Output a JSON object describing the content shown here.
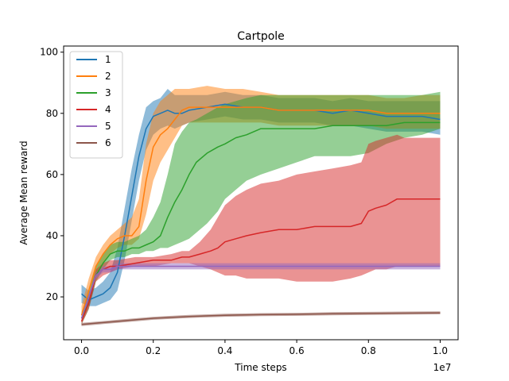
{
  "chart_data": {
    "type": "line",
    "title": "Cartpole",
    "xlabel": "Time steps",
    "ylabel": "Average Mean reward",
    "x_multiplier_label": "1e7",
    "xlim": [
      -0.05,
      1.05
    ],
    "ylim": [
      6,
      102
    ],
    "xticks": [
      0.0,
      0.2,
      0.4,
      0.6,
      0.8,
      1.0
    ],
    "xtick_labels": [
      "0.0",
      "0.2",
      "0.4",
      "0.6",
      "0.8",
      "1.0"
    ],
    "yticks": [
      20,
      40,
      60,
      80,
      100
    ],
    "ytick_labels": [
      "20",
      "40",
      "60",
      "80",
      "100"
    ],
    "legend_position": "top-left",
    "series": [
      {
        "name": "1",
        "color": "#1f77b4",
        "points": [
          [
            0.0,
            21
          ],
          [
            0.02,
            19
          ],
          [
            0.04,
            20
          ],
          [
            0.06,
            21
          ],
          [
            0.08,
            23
          ],
          [
            0.1,
            28
          ],
          [
            0.12,
            40
          ],
          [
            0.14,
            53
          ],
          [
            0.16,
            66
          ],
          [
            0.18,
            75
          ],
          [
            0.2,
            79
          ],
          [
            0.22,
            80
          ],
          [
            0.24,
            81
          ],
          [
            0.26,
            80
          ],
          [
            0.28,
            80
          ],
          [
            0.3,
            81
          ],
          [
            0.35,
            82
          ],
          [
            0.4,
            83
          ],
          [
            0.45,
            82
          ],
          [
            0.5,
            82
          ],
          [
            0.55,
            81
          ],
          [
            0.6,
            81
          ],
          [
            0.65,
            81
          ],
          [
            0.7,
            80
          ],
          [
            0.75,
            81
          ],
          [
            0.8,
            80
          ],
          [
            0.85,
            79
          ],
          [
            0.9,
            79
          ],
          [
            0.95,
            79
          ],
          [
            1.0,
            78
          ]
        ],
        "band_lower": [
          18,
          17,
          17,
          18,
          19,
          22,
          32,
          45,
          58,
          68,
          73,
          75,
          76,
          75,
          76,
          77,
          78,
          79,
          78,
          78,
          77,
          77,
          77,
          76,
          76,
          75,
          74,
          74,
          74,
          73
        ],
        "band_upper": [
          24,
          22,
          23,
          25,
          28,
          36,
          49,
          62,
          73,
          82,
          84,
          85,
          88,
          86,
          86,
          86,
          86,
          87,
          86,
          86,
          85,
          85,
          85,
          84,
          85,
          84,
          84,
          84,
          84,
          84
        ]
      },
      {
        "name": "2",
        "color": "#ff7f0e",
        "points": [
          [
            0.0,
            14
          ],
          [
            0.02,
            22
          ],
          [
            0.04,
            30
          ],
          [
            0.06,
            34
          ],
          [
            0.08,
            37
          ],
          [
            0.1,
            39
          ],
          [
            0.12,
            40
          ],
          [
            0.14,
            40
          ],
          [
            0.16,
            43
          ],
          [
            0.18,
            58
          ],
          [
            0.2,
            69
          ],
          [
            0.22,
            73
          ],
          [
            0.24,
            75
          ],
          [
            0.26,
            78
          ],
          [
            0.28,
            81
          ],
          [
            0.3,
            82
          ],
          [
            0.35,
            82
          ],
          [
            0.4,
            82
          ],
          [
            0.45,
            82
          ],
          [
            0.5,
            82
          ],
          [
            0.55,
            81
          ],
          [
            0.6,
            81
          ],
          [
            0.65,
            81
          ],
          [
            0.7,
            81
          ],
          [
            0.75,
            81
          ],
          [
            0.8,
            81
          ],
          [
            0.85,
            80
          ],
          [
            0.9,
            80
          ],
          [
            0.95,
            80
          ],
          [
            1.0,
            80
          ]
        ],
        "band_lower": [
          12,
          19,
          27,
          31,
          34,
          36,
          37,
          37,
          39,
          47,
          58,
          64,
          68,
          72,
          76,
          77,
          77,
          77,
          77,
          77,
          76,
          76,
          76,
          76,
          76,
          76,
          75,
          75,
          75,
          75
        ],
        "band_upper": [
          17,
          26,
          33,
          37,
          40,
          42,
          44,
          46,
          52,
          70,
          80,
          84,
          86,
          88,
          88,
          88,
          89,
          88,
          88,
          87,
          86,
          86,
          86,
          86,
          86,
          86,
          85,
          85,
          86,
          86
        ]
      },
      {
        "name": "3",
        "color": "#2ca02c",
        "points": [
          [
            0.0,
            13
          ],
          [
            0.02,
            18
          ],
          [
            0.04,
            27
          ],
          [
            0.06,
            31
          ],
          [
            0.08,
            34
          ],
          [
            0.1,
            35
          ],
          [
            0.12,
            35
          ],
          [
            0.14,
            36
          ],
          [
            0.16,
            36
          ],
          [
            0.18,
            37
          ],
          [
            0.2,
            38
          ],
          [
            0.22,
            40
          ],
          [
            0.24,
            46
          ],
          [
            0.26,
            51
          ],
          [
            0.28,
            55
          ],
          [
            0.3,
            60
          ],
          [
            0.32,
            64
          ],
          [
            0.35,
            67
          ],
          [
            0.38,
            69
          ],
          [
            0.4,
            70
          ],
          [
            0.43,
            72
          ],
          [
            0.46,
            73
          ],
          [
            0.5,
            75
          ],
          [
            0.55,
            75
          ],
          [
            0.6,
            75
          ],
          [
            0.65,
            75
          ],
          [
            0.7,
            76
          ],
          [
            0.75,
            76
          ],
          [
            0.8,
            76
          ],
          [
            0.85,
            76
          ],
          [
            0.9,
            77
          ],
          [
            0.95,
            77
          ],
          [
            1.0,
            77
          ]
        ],
        "band_lower": [
          11,
          16,
          25,
          29,
          32,
          33,
          33,
          34,
          34,
          35,
          35,
          36,
          36,
          37,
          38,
          39,
          41,
          44,
          48,
          52,
          55,
          58,
          60,
          62,
          64,
          66,
          66,
          66,
          67,
          70,
          72,
          73,
          75
        ],
        "band_upper": [
          15,
          21,
          30,
          34,
          37,
          38,
          38,
          39,
          40,
          42,
          46,
          51,
          60,
          70,
          74,
          77,
          78,
          80,
          82,
          83,
          84,
          85,
          86,
          86,
          86,
          86,
          86,
          86,
          86,
          86,
          86,
          86,
          87
        ]
      },
      {
        "name": "4",
        "color": "#d62728",
        "points": [
          [
            0.0,
            12
          ],
          [
            0.02,
            18
          ],
          [
            0.04,
            27
          ],
          [
            0.06,
            29
          ],
          [
            0.08,
            30
          ],
          [
            0.1,
            30
          ],
          [
            0.15,
            31
          ],
          [
            0.2,
            32
          ],
          [
            0.25,
            32
          ],
          [
            0.28,
            33
          ],
          [
            0.3,
            33
          ],
          [
            0.33,
            34
          ],
          [
            0.36,
            35
          ],
          [
            0.38,
            36
          ],
          [
            0.4,
            38
          ],
          [
            0.43,
            39
          ],
          [
            0.46,
            40
          ],
          [
            0.5,
            41
          ],
          [
            0.55,
            42
          ],
          [
            0.6,
            42
          ],
          [
            0.65,
            43
          ],
          [
            0.7,
            43
          ],
          [
            0.75,
            43
          ],
          [
            0.78,
            44
          ],
          [
            0.8,
            48
          ],
          [
            0.82,
            49
          ],
          [
            0.85,
            50
          ],
          [
            0.88,
            52
          ],
          [
            0.9,
            52
          ],
          [
            0.95,
            52
          ],
          [
            1.0,
            52
          ]
        ],
        "band_lower": [
          11,
          16,
          25,
          27,
          28,
          29,
          30,
          30,
          31,
          31,
          31,
          30,
          29,
          28,
          27,
          27,
          26,
          26,
          26,
          25,
          25,
          25,
          26,
          27,
          28,
          29,
          29,
          30,
          30,
          30,
          30
        ],
        "band_upper": [
          13,
          20,
          29,
          31,
          32,
          32,
          33,
          33,
          34,
          35,
          35,
          38,
          42,
          46,
          50,
          53,
          55,
          57,
          58,
          60,
          61,
          62,
          63,
          64,
          70,
          71,
          72,
          73,
          72,
          72,
          72
        ]
      },
      {
        "name": "5",
        "color": "#9467bd",
        "points": [
          [
            0.0,
            13
          ],
          [
            0.02,
            20
          ],
          [
            0.04,
            27
          ],
          [
            0.06,
            29
          ],
          [
            0.08,
            29
          ],
          [
            0.1,
            30
          ],
          [
            0.2,
            30
          ],
          [
            0.3,
            30
          ],
          [
            0.4,
            30
          ],
          [
            0.5,
            30
          ],
          [
            0.6,
            30
          ],
          [
            0.7,
            30
          ],
          [
            0.8,
            30
          ],
          [
            0.9,
            30
          ],
          [
            1.0,
            30
          ]
        ],
        "band_lower": [
          12,
          19,
          26,
          28,
          28,
          29,
          29,
          29,
          29,
          29,
          29,
          29,
          29,
          29,
          29
        ],
        "band_upper": [
          14,
          21,
          28,
          30,
          30,
          31,
          31,
          31,
          31,
          31,
          31,
          31,
          31,
          31,
          31
        ]
      },
      {
        "name": "6",
        "color": "#8c564b",
        "points": [
          [
            0.0,
            11
          ],
          [
            0.05,
            11.5
          ],
          [
            0.1,
            12
          ],
          [
            0.15,
            12.5
          ],
          [
            0.2,
            13
          ],
          [
            0.25,
            13.3
          ],
          [
            0.3,
            13.6
          ],
          [
            0.4,
            14
          ],
          [
            0.5,
            14.2
          ],
          [
            0.6,
            14.3
          ],
          [
            0.7,
            14.5
          ],
          [
            0.8,
            14.6
          ],
          [
            0.9,
            14.7
          ],
          [
            1.0,
            14.8
          ]
        ],
        "band_lower": [
          10.5,
          11,
          11.5,
          12,
          12.5,
          12.8,
          13.1,
          13.5,
          13.7,
          13.8,
          14,
          14.1,
          14.2,
          14.3
        ],
        "band_upper": [
          11.5,
          12,
          12.5,
          13,
          13.5,
          13.8,
          14.1,
          14.5,
          14.7,
          14.8,
          15,
          15.1,
          15.2,
          15.3
        ]
      }
    ]
  }
}
